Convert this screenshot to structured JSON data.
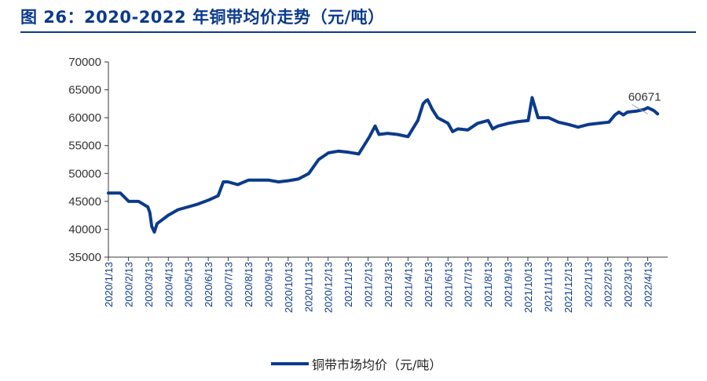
{
  "header": {
    "title": "图 26：2020-2022 年铜带均价走势（元/吨）"
  },
  "colors": {
    "accent": "#0b3a8c",
    "series": "#0b3a8c",
    "axis": "#3a3a3a",
    "tick_text": "#333333",
    "date_text": "#0b3a8c"
  },
  "chart_data": {
    "type": "line",
    "title": "",
    "xlabel": "",
    "ylabel": "",
    "ylim": [
      35000,
      70000
    ],
    "yticks": [
      35000,
      40000,
      45000,
      50000,
      55000,
      60000,
      65000,
      70000
    ],
    "ytick_labels": [
      "35000",
      "40000",
      "45000",
      "50000",
      "55000",
      "60000",
      "65000",
      "70000"
    ],
    "xtick_labels": [
      "2020/1/13",
      "2020/2/13",
      "2020/3/13",
      "2020/4/13",
      "2020/5/13",
      "2020/6/13",
      "2020/7/13",
      "2020/8/13",
      "2020/9/13",
      "2020/10/13",
      "2020/11/13",
      "2020/12/13",
      "2021/1/13",
      "2021/2/13",
      "2021/3/13",
      "2021/4/13",
      "2021/5/13",
      "2021/6/13",
      "2021/7/13",
      "2021/8/13",
      "2021/9/13",
      "2021/10/13",
      "2021/11/13",
      "2021/12/13",
      "2022/1/13",
      "2022/2/13",
      "2022/3/13",
      "2022/4/13"
    ],
    "grid": false,
    "legend_position": "bottom",
    "series": [
      {
        "name": "铜带市场均价（元/吨）",
        "x": [
          "2020/1/13",
          "2020/1/31",
          "2020/2/13",
          "2020/2/28",
          "2020/3/13",
          "2020/3/16",
          "2020/3/19",
          "2020/3/23",
          "2020/3/27",
          "2020/4/13",
          "2020/4/28",
          "2020/5/13",
          "2020/5/28",
          "2020/6/13",
          "2020/6/28",
          "2020/7/6",
          "2020/7/13",
          "2020/7/28",
          "2020/8/13",
          "2020/8/28",
          "2020/9/13",
          "2020/9/28",
          "2020/10/13",
          "2020/10/28",
          "2020/11/13",
          "2020/11/28",
          "2020/12/13",
          "2020/12/28",
          "2021/1/13",
          "2021/1/28",
          "2021/2/13",
          "2021/2/22",
          "2021/2/28",
          "2021/3/13",
          "2021/3/28",
          "2021/4/13",
          "2021/4/28",
          "2021/5/6",
          "2021/5/10",
          "2021/5/13",
          "2021/5/20",
          "2021/5/28",
          "2021/6/13",
          "2021/6/20",
          "2021/6/28",
          "2021/7/13",
          "2021/7/28",
          "2021/8/13",
          "2021/8/20",
          "2021/8/28",
          "2021/9/13",
          "2021/9/28",
          "2021/10/13",
          "2021/10/19",
          "2021/10/28",
          "2021/11/13",
          "2021/11/28",
          "2021/12/13",
          "2021/12/28",
          "2022/1/13",
          "2022/1/28",
          "2022/2/13",
          "2022/2/22",
          "2022/2/28",
          "2022/3/7",
          "2022/3/13",
          "2022/3/28",
          "2022/4/8",
          "2022/4/13",
          "2022/4/22",
          "2022/4/28"
        ],
        "y": [
          46500,
          46500,
          45000,
          45000,
          44000,
          43000,
          40500,
          39500,
          41000,
          42500,
          43500,
          44000,
          44500,
          45200,
          46000,
          48500,
          48500,
          48000,
          48800,
          48800,
          48800,
          48500,
          48700,
          49000,
          50000,
          52500,
          53700,
          54000,
          53800,
          53500,
          56500,
          58500,
          57000,
          57200,
          57000,
          56600,
          59500,
          62500,
          63000,
          63200,
          61500,
          60000,
          59000,
          57500,
          58000,
          57800,
          59000,
          59500,
          58000,
          58500,
          59000,
          59300,
          59500,
          63600,
          60000,
          60000,
          59200,
          58800,
          58300,
          58800,
          59000,
          59200,
          60500,
          61000,
          60500,
          61000,
          61200,
          61500,
          61800,
          61300,
          60700
        ]
      }
    ],
    "annotations": [
      {
        "text": "60671",
        "x": "2022/4/13",
        "y": 60671
      }
    ]
  }
}
